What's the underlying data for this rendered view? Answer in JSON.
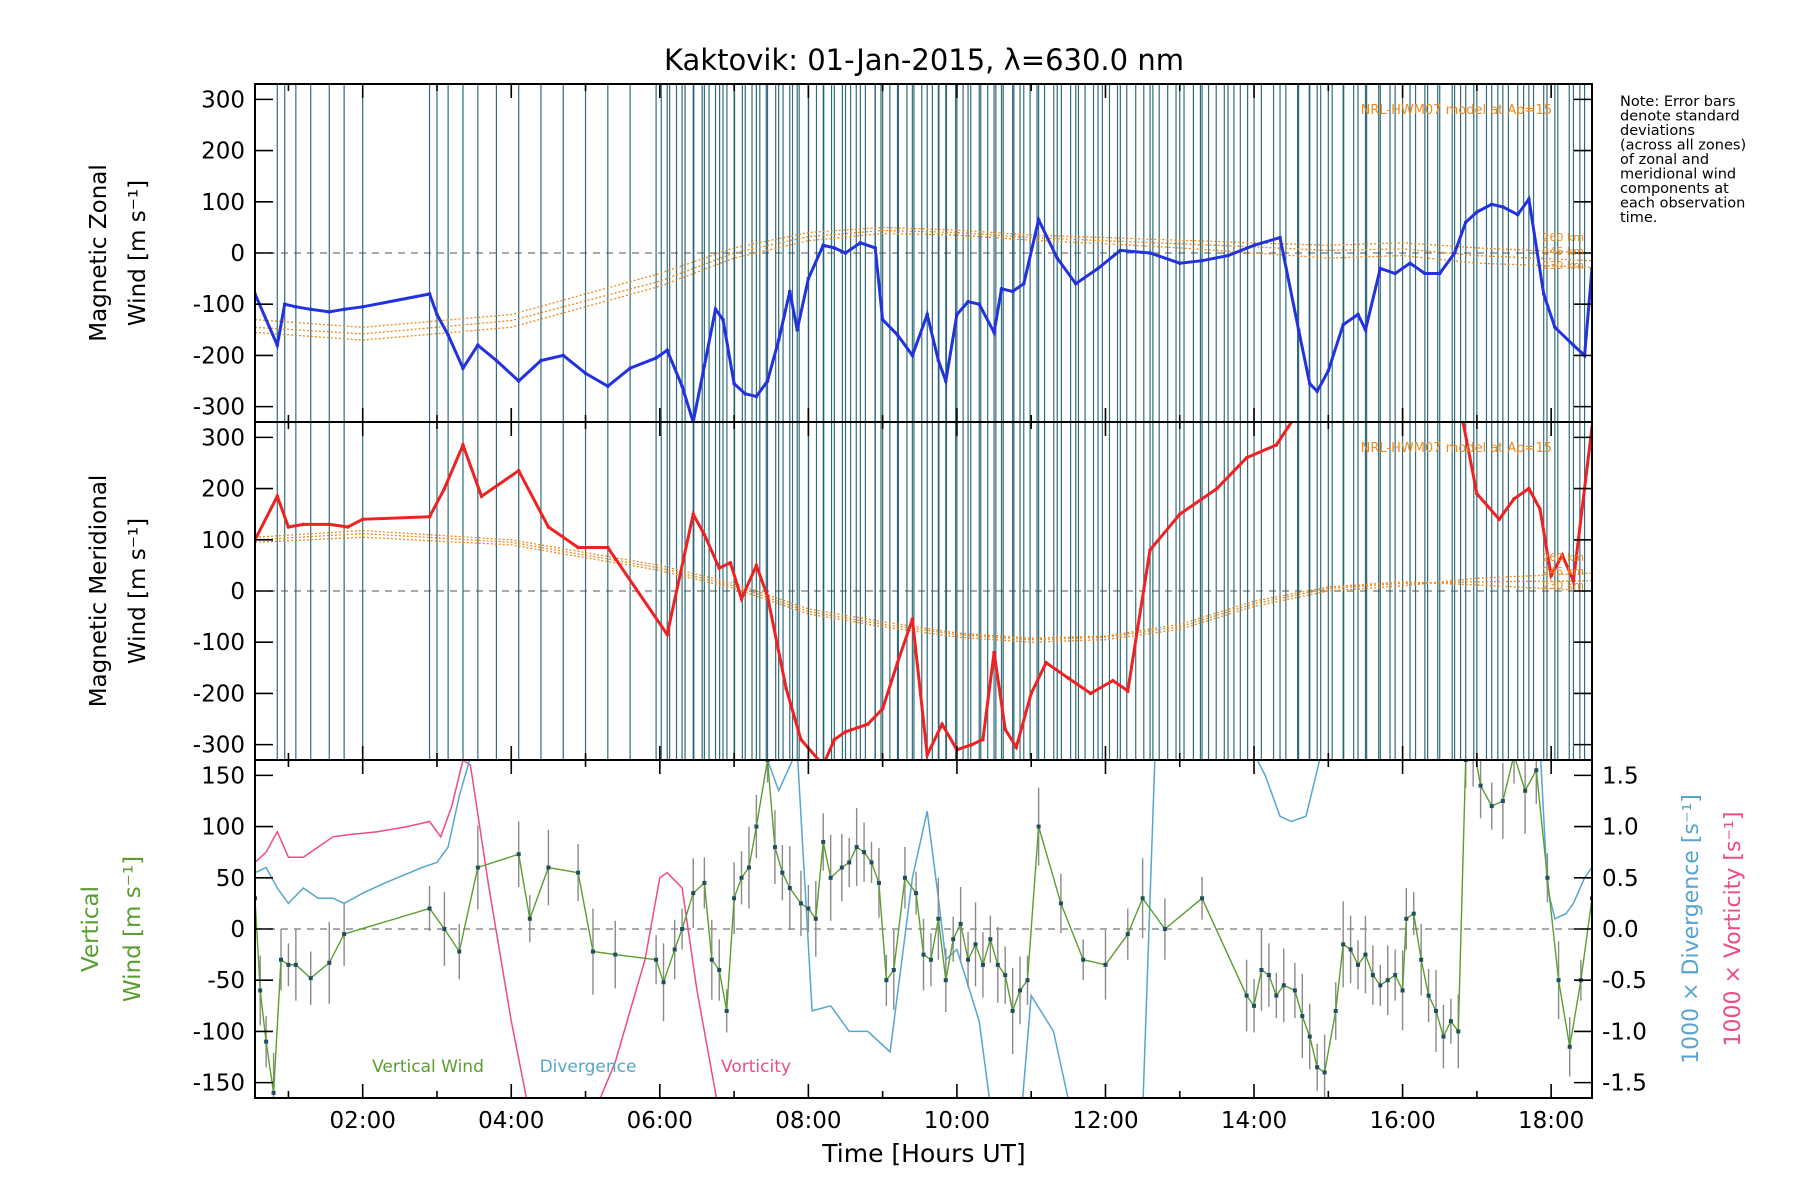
{
  "title": "Kaktovik: 01-Jan-2015, λ=630.0 nm",
  "note": [
    "Note: Error bars",
    "denote standard",
    "deviations",
    "(across all zones)",
    "of zonal and",
    "meridional wind",
    "components at",
    "each observation",
    "time."
  ],
  "colors": {
    "zonal": "#2233dd",
    "meridional": "#ee2222",
    "vertical": "#5a9e2f",
    "divergence": "#56a6d0",
    "vorticity": "#ee4a88",
    "model": "#ee8a1e",
    "obs_lines": "#1b5e6e",
    "errorbar": "#8a8a8a",
    "marker": "#1f4e5e"
  },
  "chart_data": [
    {
      "type": "line",
      "name": "zonal",
      "ylabel": "Magnetic Zonal",
      "ylabel_units": "Wind [m s⁻¹]",
      "ylim": [
        -330,
        330
      ],
      "xlim": [
        0.55,
        18.55
      ],
      "yticks": [
        300,
        200,
        100,
        0,
        -100,
        -200,
        -300
      ],
      "model_label": "NRL-HWM07 model at Ap=15",
      "model_altitudes": [
        "260 km",
        "245 km",
        "230 km"
      ],
      "series": [
        {
          "role": "zonal_wind",
          "x": [
            0.55,
            0.85,
            0.95,
            1.1,
            1.3,
            1.55,
            1.75,
            2.0,
            2.9,
            3.0,
            3.15,
            3.35,
            3.55,
            3.8,
            4.1,
            4.4,
            4.7,
            5.0,
            5.3,
            5.6,
            5.95,
            6.1,
            6.3,
            6.45,
            6.6,
            6.75,
            6.85,
            7.0,
            7.15,
            7.3,
            7.45,
            7.6,
            7.75,
            7.85,
            8.0,
            8.2,
            8.35,
            8.5,
            8.7,
            8.9,
            9.0,
            9.2,
            9.4,
            9.6,
            9.75,
            9.85,
            10.0,
            10.15,
            10.3,
            10.5,
            10.6,
            10.75,
            10.9,
            11.1,
            11.35,
            11.6,
            11.9,
            12.2,
            12.6,
            13.0,
            13.3,
            13.65,
            14.0,
            14.35,
            14.6,
            14.75,
            14.85,
            15.0,
            15.2,
            15.4,
            15.5,
            15.7,
            15.9,
            16.1,
            16.3,
            16.5,
            16.7,
            16.85,
            17.0,
            17.2,
            17.35,
            17.55,
            17.7,
            17.9,
            18.05,
            18.3,
            18.45,
            18.55
          ],
          "y": [
            -80,
            -180,
            -100,
            -105,
            -110,
            -115,
            -110,
            -105,
            -80,
            -120,
            -160,
            -225,
            -180,
            -210,
            -250,
            -210,
            -200,
            -235,
            -260,
            -225,
            -205,
            -190,
            -260,
            -330,
            -220,
            -110,
            -130,
            -255,
            -275,
            -280,
            -250,
            -170,
            -75,
            -150,
            -50,
            15,
            10,
            0,
            20,
            10,
            -130,
            -160,
            -200,
            -120,
            -210,
            -250,
            -120,
            -95,
            -100,
            -155,
            -70,
            -75,
            -60,
            65,
            -10,
            -60,
            -30,
            5,
            0,
            -20,
            -15,
            -5,
            15,
            30,
            -150,
            -255,
            -270,
            -230,
            -140,
            -120,
            -150,
            -30,
            -40,
            -20,
            -40,
            -40,
            0,
            60,
            80,
            95,
            90,
            75,
            105,
            -80,
            -145,
            -180,
            -200,
            -30
          ]
        }
      ],
      "model_curves": [
        {
          "x": [
            0.55,
            2,
            4,
            6,
            7,
            8,
            9,
            10,
            11,
            12,
            13,
            14,
            15,
            16,
            17,
            18.55
          ],
          "y": [
            -130,
            -145,
            -120,
            -40,
            10,
            40,
            50,
            45,
            35,
            30,
            25,
            20,
            15,
            20,
            10,
            0
          ]
        },
        {
          "x": [
            0.55,
            2,
            4,
            6,
            7,
            8,
            9,
            10,
            11,
            12,
            13,
            14,
            15,
            16,
            17,
            18.55
          ],
          "y": [
            -145,
            -158,
            -132,
            -55,
            0,
            32,
            44,
            40,
            30,
            24,
            18,
            12,
            5,
            8,
            -5,
            -15
          ]
        },
        {
          "x": [
            0.55,
            2,
            4,
            6,
            7,
            8,
            9,
            10,
            11,
            12,
            13,
            14,
            15,
            16,
            17,
            18.55
          ],
          "y": [
            -155,
            -170,
            -145,
            -65,
            -10,
            24,
            38,
            35,
            25,
            18,
            10,
            0,
            -10,
            -5,
            -20,
            -28
          ]
        }
      ]
    },
    {
      "type": "line",
      "name": "meridional",
      "ylabel": "Magnetic Meridional",
      "ylabel_units": "Wind [m s⁻¹]",
      "ylim": [
        -330,
        330
      ],
      "xlim": [
        0.55,
        18.55
      ],
      "yticks": [
        300,
        200,
        100,
        0,
        -100,
        -200,
        -300
      ],
      "model_label": "NRL-HWM07 model at Ap=15",
      "model_altitudes": [
        "260 km",
        "245 km",
        "230 km"
      ],
      "series": [
        {
          "role": "meridional_wind",
          "x": [
            0.55,
            0.85,
            1.0,
            1.2,
            1.55,
            1.8,
            2.0,
            2.9,
            3.1,
            3.35,
            3.6,
            4.1,
            4.5,
            4.9,
            5.3,
            6.1,
            6.45,
            6.6,
            6.8,
            6.95,
            7.1,
            7.3,
            7.45,
            7.7,
            7.9,
            8.2,
            8.35,
            8.5,
            8.8,
            9.0,
            9.2,
            9.4,
            9.6,
            9.8,
            10.0,
            10.2,
            10.35,
            10.5,
            10.65,
            10.8,
            11.0,
            11.2,
            11.5,
            11.8,
            12.1,
            12.3,
            12.6,
            13.0,
            13.5,
            13.9,
            14.3,
            14.55,
            16.8,
            17.0,
            17.3,
            17.5,
            17.7,
            17.85,
            18.0,
            18.15,
            18.3,
            18.55
          ],
          "y": [
            100,
            185,
            125,
            130,
            130,
            125,
            140,
            145,
            200,
            285,
            185,
            235,
            125,
            85,
            85,
            -85,
            150,
            110,
            45,
            55,
            -15,
            50,
            -10,
            -190,
            -290,
            -340,
            -290,
            -275,
            -260,
            -230,
            -140,
            -55,
            -320,
            -260,
            -310,
            -300,
            -290,
            -120,
            -270,
            -305,
            -200,
            -140,
            -170,
            -200,
            -175,
            -195,
            80,
            150,
            200,
            260,
            285,
            340,
            340,
            190,
            140,
            180,
            200,
            160,
            30,
            70,
            20,
            320
          ]
        }
      ],
      "model_curves": [
        {
          "x": [
            0.55,
            2,
            4,
            6,
            7,
            8,
            9,
            10,
            11,
            12,
            13,
            14,
            15,
            16,
            17,
            18.55
          ],
          "y": [
            95,
            105,
            90,
            40,
            5,
            -45,
            -70,
            -90,
            -100,
            -95,
            -75,
            -30,
            0,
            10,
            25,
            35
          ]
        },
        {
          "x": [
            0.55,
            2,
            4,
            6,
            7,
            8,
            9,
            10,
            11,
            12,
            13,
            14,
            15,
            16,
            17,
            18.55
          ],
          "y": [
            100,
            112,
            95,
            45,
            10,
            -40,
            -65,
            -85,
            -95,
            -90,
            -70,
            -25,
            5,
            15,
            18,
            20
          ]
        },
        {
          "x": [
            0.55,
            2,
            4,
            6,
            7,
            8,
            9,
            10,
            11,
            12,
            13,
            14,
            15,
            16,
            17,
            18.55
          ],
          "y": [
            105,
            118,
            100,
            50,
            15,
            -35,
            -60,
            -82,
            -92,
            -88,
            -65,
            -20,
            8,
            18,
            12,
            0
          ]
        }
      ]
    },
    {
      "type": "line",
      "name": "vertical",
      "ylabel": "Vertical",
      "ylabel_units": "Wind [m s⁻¹]",
      "ylim": [
        -165,
        165
      ],
      "xlim": [
        0.55,
        18.55
      ],
      "yticks": [
        150,
        100,
        50,
        0,
        -50,
        -100,
        -150
      ],
      "y2label_div": "1000 × Divergence [s⁻¹]",
      "y2label_vor": "1000 × Vorticity [s⁻¹]",
      "y2lim": [
        -1.65,
        1.65
      ],
      "y2ticks": [
        1.5,
        1.0,
        0.5,
        0.0,
        -0.5,
        -1.0,
        -1.5
      ],
      "y2ticklabels": [
        "1.5",
        "1.0",
        "0.5",
        "0.0",
        "-0.5",
        "-1.0",
        "-1.5"
      ],
      "xticks": [
        2,
        4,
        6,
        8,
        10,
        12,
        14,
        16,
        18
      ],
      "xticklabels": [
        "02:00",
        "04:00",
        "06:00",
        "08:00",
        "10:00",
        "12:00",
        "14:00",
        "16:00",
        "18:00"
      ],
      "xlabel": "Time [Hours UT]",
      "legend": [
        "Vertical Wind",
        "Divergence",
        "Vorticity"
      ],
      "series": [
        {
          "role": "vertical_wind",
          "x": [
            0.55,
            0.62,
            0.7,
            0.8,
            0.9,
            1.0,
            1.1,
            1.3,
            1.55,
            1.75,
            2.9,
            3.1,
            3.3,
            3.55,
            4.1,
            4.25,
            4.5,
            4.9,
            5.1,
            5.4,
            5.95,
            6.05,
            6.2,
            6.3,
            6.45,
            6.6,
            6.7,
            6.8,
            6.9,
            7.0,
            7.1,
            7.2,
            7.3,
            7.45,
            7.55,
            7.65,
            7.75,
            7.9,
            8.0,
            8.1,
            8.2,
            8.3,
            8.45,
            8.55,
            8.65,
            8.75,
            8.85,
            8.95,
            9.05,
            9.15,
            9.3,
            9.45,
            9.55,
            9.65,
            9.75,
            9.85,
            9.95,
            10.05,
            10.15,
            10.25,
            10.35,
            10.45,
            10.55,
            10.65,
            10.75,
            10.85,
            10.95,
            11.1,
            11.4,
            11.7,
            12.0,
            12.3,
            12.5,
            12.8,
            13.3,
            13.9,
            14.0,
            14.1,
            14.2,
            14.3,
            14.4,
            14.55,
            14.65,
            14.75,
            14.85,
            14.95,
            15.1,
            15.2,
            15.3,
            15.4,
            15.5,
            15.6,
            15.7,
            15.8,
            15.9,
            16.0,
            16.05,
            16.15,
            16.25,
            16.35,
            16.45,
            16.55,
            16.65,
            16.75,
            16.85,
            16.95,
            17.05,
            17.2,
            17.35,
            17.5,
            17.65,
            17.8,
            17.95,
            18.1,
            18.25,
            18.4,
            18.55
          ],
          "y": [
            30,
            -60,
            -110,
            -160,
            -30,
            -35,
            -35,
            -48,
            -33,
            -5,
            20,
            0,
            -22,
            60,
            73,
            10,
            60,
            55,
            -22,
            -25,
            -30,
            -52,
            -20,
            0,
            35,
            45,
            -30,
            -40,
            -80,
            30,
            50,
            60,
            100,
            165,
            80,
            55,
            40,
            25,
            20,
            10,
            85,
            50,
            60,
            65,
            80,
            75,
            65,
            45,
            -50,
            -40,
            50,
            35,
            -25,
            -30,
            10,
            -50,
            -10,
            5,
            -30,
            -15,
            -35,
            -10,
            -35,
            -45,
            -80,
            -60,
            -50,
            100,
            25,
            -30,
            -35,
            -5,
            30,
            0,
            30,
            -65,
            -75,
            -40,
            -45,
            -65,
            -55,
            -60,
            -85,
            -105,
            -135,
            -140,
            -80,
            -15,
            -20,
            -35,
            -25,
            -45,
            -55,
            -50,
            -45,
            -60,
            10,
            15,
            -30,
            -65,
            -80,
            -105,
            -90,
            -100,
            165,
            180,
            140,
            120,
            125,
            170,
            135,
            155,
            50,
            -50,
            -115,
            -50,
            30
          ]
        },
        {
          "role": "divergence",
          "x": [
            0.55,
            0.7,
            0.85,
            1.0,
            1.2,
            1.4,
            1.6,
            1.75,
            2.0,
            2.3,
            2.8,
            3.0,
            3.15,
            3.3,
            3.5,
            3.8,
            4.2,
            4.6,
            5.0,
            5.4,
            5.8,
            6.2,
            6.5,
            6.8,
            7.1,
            7.4,
            7.6,
            7.85,
            8.05,
            8.3,
            8.55,
            8.8,
            9.1,
            9.4,
            9.6,
            9.75,
            9.85,
            10.0,
            10.3,
            10.5,
            10.7,
            10.85,
            11.0,
            11.3,
            11.6,
            11.9,
            12.2,
            12.5,
            12.7,
            13.0,
            13.3,
            13.6,
            13.9,
            14.15,
            14.35,
            14.5,
            14.7,
            14.9,
            15.1,
            15.4,
            15.7,
            16.0,
            16.3,
            16.6,
            16.8,
            17.0,
            17.3,
            17.6,
            17.85,
            17.95,
            18.05,
            18.2,
            18.3,
            18.45,
            18.55
          ],
          "y": [
            0.55,
            0.6,
            0.4,
            0.25,
            0.4,
            0.3,
            0.3,
            0.25,
            0.35,
            0.45,
            0.6,
            0.65,
            0.8,
            1.3,
            1.8,
            2.2,
            2.4,
            2.5,
            2.6,
            2.7,
            2.6,
            2.4,
            2.0,
            1.8,
            1.9,
            1.75,
            1.35,
            1.75,
            -0.8,
            -0.75,
            -1.0,
            -1.0,
            -1.2,
            0.5,
            1.15,
            0.3,
            -0.3,
            -0.2,
            -0.9,
            -2.0,
            -1.8,
            -1.95,
            -0.65,
            -1.0,
            -2.0,
            -2.5,
            -2.3,
            -1.8,
            2.4,
            2.6,
            2.3,
            1.95,
            1.85,
            1.5,
            1.1,
            1.05,
            1.1,
            1.7,
            2.3,
            2.5,
            2.2,
            2.0,
            2.3,
            2.1,
            2.3,
            2.4,
            2.6,
            2.4,
            1.8,
            0.4,
            0.1,
            0.15,
            0.25,
            0.5,
            0.6
          ]
        },
        {
          "role": "vorticity",
          "x": [
            0.55,
            0.7,
            0.85,
            1.0,
            1.2,
            1.4,
            1.6,
            1.8,
            2.2,
            2.6,
            2.9,
            3.05,
            3.2,
            3.35,
            3.45,
            3.7,
            4.0,
            4.3,
            4.6,
            5.0,
            5.4,
            5.8,
            6.0,
            6.1,
            6.3,
            6.5,
            6.7,
            6.9,
            7.1
          ],
          "y": [
            0.65,
            0.75,
            0.95,
            0.7,
            0.7,
            0.8,
            0.9,
            0.92,
            0.95,
            1.0,
            1.05,
            0.9,
            1.2,
            1.65,
            1.6,
            0.4,
            -0.9,
            -2.0,
            -2.3,
            -2.0,
            -1.3,
            -0.3,
            0.5,
            0.55,
            0.4,
            -0.6,
            -1.4,
            -2.2,
            -2.6
          ]
        }
      ]
    }
  ]
}
